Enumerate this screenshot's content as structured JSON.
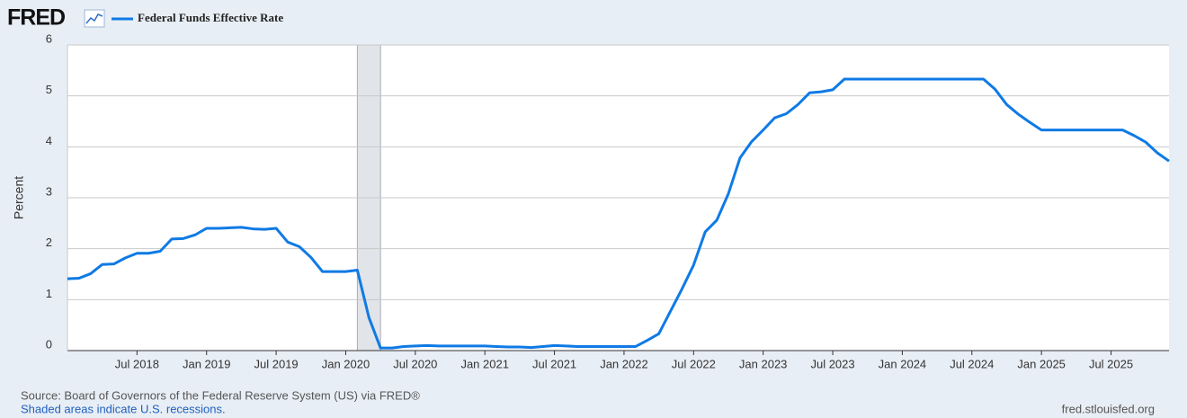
{
  "brand": "FRED",
  "chart_data": {
    "type": "line",
    "y_label": "Percent",
    "x": [
      "2018-01",
      "2018-02",
      "2018-03",
      "2018-04",
      "2018-05",
      "2018-06",
      "2018-07",
      "2018-08",
      "2018-09",
      "2018-10",
      "2018-11",
      "2018-12",
      "2019-01",
      "2019-02",
      "2019-03",
      "2019-04",
      "2019-05",
      "2019-06",
      "2019-07",
      "2019-08",
      "2019-09",
      "2019-10",
      "2019-11",
      "2019-12",
      "2020-01",
      "2020-02",
      "2020-03",
      "2020-04",
      "2020-05",
      "2020-06",
      "2020-07",
      "2020-08",
      "2020-09",
      "2020-10",
      "2020-11",
      "2020-12",
      "2021-01",
      "2021-02",
      "2021-03",
      "2021-04",
      "2021-05",
      "2021-06",
      "2021-07",
      "2021-08",
      "2021-09",
      "2021-10",
      "2021-11",
      "2021-12",
      "2022-01",
      "2022-02",
      "2022-03",
      "2022-04",
      "2022-05",
      "2022-06",
      "2022-07",
      "2022-08",
      "2022-09",
      "2022-10",
      "2022-11",
      "2022-12",
      "2023-01",
      "2023-02",
      "2023-03",
      "2023-04",
      "2023-05",
      "2023-06",
      "2023-07",
      "2023-08",
      "2023-09",
      "2023-10",
      "2023-11",
      "2023-12",
      "2024-01",
      "2024-02",
      "2024-03",
      "2024-04",
      "2024-05",
      "2024-06",
      "2024-07",
      "2024-08",
      "2024-09",
      "2024-10",
      "2024-11",
      "2024-12",
      "2025-01",
      "2025-02",
      "2025-03",
      "2025-04",
      "2025-05",
      "2025-06",
      "2025-07",
      "2025-08",
      "2025-09",
      "2025-10",
      "2025-11",
      "2025-12"
    ],
    "series": [
      {
        "name": "Federal Funds Effective Rate",
        "color": "#0f7ae5",
        "values": [
          1.41,
          1.42,
          1.51,
          1.69,
          1.7,
          1.82,
          1.91,
          1.91,
          1.95,
          2.19,
          2.2,
          2.27,
          2.4,
          2.4,
          2.41,
          2.42,
          2.39,
          2.38,
          2.4,
          2.13,
          2.04,
          1.83,
          1.55,
          1.55,
          1.55,
          1.58,
          0.65,
          0.05,
          0.05,
          0.08,
          0.09,
          0.1,
          0.09,
          0.09,
          0.09,
          0.09,
          0.09,
          0.08,
          0.07,
          0.07,
          0.06,
          0.08,
          0.1,
          0.09,
          0.08,
          0.08,
          0.08,
          0.08,
          0.08,
          0.08,
          0.2,
          0.33,
          0.77,
          1.21,
          1.68,
          2.33,
          2.56,
          3.08,
          3.78,
          4.1,
          4.33,
          4.57,
          4.65,
          4.83,
          5.06,
          5.08,
          5.12,
          5.33,
          5.33,
          5.33,
          5.33,
          5.33,
          5.33,
          5.33,
          5.33,
          5.33,
          5.33,
          5.33,
          5.33,
          5.33,
          5.13,
          4.83,
          4.64,
          4.48,
          4.33,
          4.33,
          4.33,
          4.33,
          4.33,
          4.33,
          4.33,
          4.33,
          4.22,
          4.09,
          3.88,
          3.72
        ]
      }
    ],
    "xlim": [
      "2018-01",
      "2025-12"
    ],
    "xticks": [
      {
        "value": "2018-07",
        "label": "Jul 2018"
      },
      {
        "value": "2019-01",
        "label": "Jan 2019"
      },
      {
        "value": "2019-07",
        "label": "Jul 2019"
      },
      {
        "value": "2020-01",
        "label": "Jan 2020"
      },
      {
        "value": "2020-07",
        "label": "Jul 2020"
      },
      {
        "value": "2021-01",
        "label": "Jan 2021"
      },
      {
        "value": "2021-07",
        "label": "Jul 2021"
      },
      {
        "value": "2022-01",
        "label": "Jan 2022"
      },
      {
        "value": "2022-07",
        "label": "Jul 2022"
      },
      {
        "value": "2023-01",
        "label": "Jan 2023"
      },
      {
        "value": "2023-07",
        "label": "Jul 2023"
      },
      {
        "value": "2024-01",
        "label": "Jan 2024"
      },
      {
        "value": "2024-07",
        "label": "Jul 2024"
      },
      {
        "value": "2025-01",
        "label": "Jan 2025"
      },
      {
        "value": "2025-07",
        "label": "Jul 2025"
      }
    ],
    "ylim": [
      0,
      6
    ],
    "yticks": [
      0,
      1,
      2,
      3,
      4,
      5,
      6
    ],
    "grid": true,
    "recessions": [
      {
        "start": "2020-02",
        "end": "2020-04"
      }
    ],
    "source": "Source: Board of Governors of the Federal Reserve System (US) via FRED®",
    "note": "Shaded areas indicate U.S. recessions.",
    "url": "fred.stlouisfed.org"
  }
}
